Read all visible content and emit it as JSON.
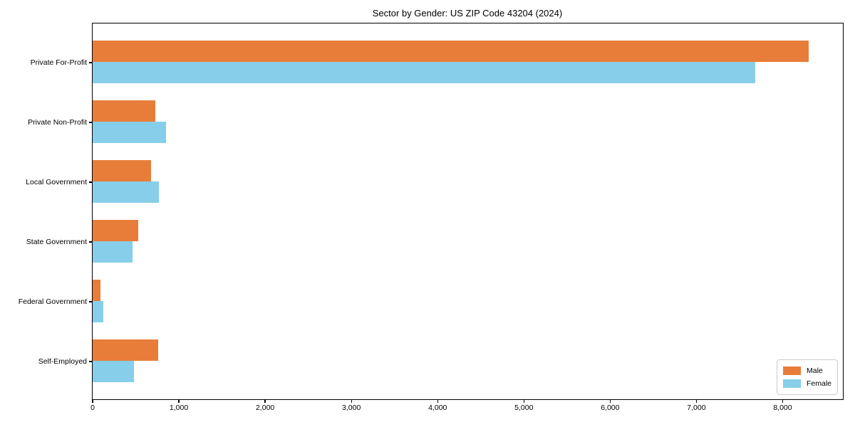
{
  "chart_data": {
    "type": "bar",
    "orientation": "horizontal",
    "title": "Sector by Gender: US ZIP Code 43204 (2024)",
    "categories": [
      "Private For-Profit",
      "Private Non-Profit",
      "Local Government",
      "State Government",
      "Federal Government",
      "Self-Employed"
    ],
    "series": [
      {
        "name": "Male",
        "color": "#e87d3a",
        "values": [
          8300,
          730,
          680,
          530,
          90,
          760
        ]
      },
      {
        "name": "Female",
        "color": "#86ceea",
        "values": [
          7680,
          850,
          770,
          460,
          120,
          480
        ]
      }
    ],
    "xlabel": "",
    "ylabel": "",
    "xlim": [
      0,
      8690
    ],
    "xticks": [
      0,
      1000,
      2000,
      3000,
      4000,
      5000,
      6000,
      7000,
      8000
    ],
    "xtick_labels": [
      "0",
      "1,000",
      "2,000",
      "3,000",
      "4,000",
      "5,000",
      "6,000",
      "7,000",
      "8,000"
    ],
    "grid": false,
    "legend_position": "lower right",
    "spine_color": "#000000"
  }
}
